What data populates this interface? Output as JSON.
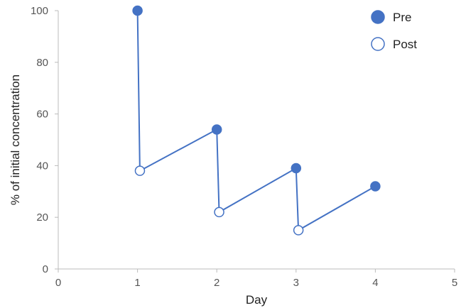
{
  "chart_data": {
    "type": "line",
    "xlabel": "Day",
    "ylabel": "% of initial concentration",
    "xlim": [
      0,
      5
    ],
    "ylim": [
      0,
      100
    ],
    "xticks": [
      "0",
      "1",
      "2",
      "3",
      "4",
      "5"
    ],
    "yticks": [
      "0",
      "20",
      "40",
      "60",
      "80",
      "100"
    ],
    "grid": false,
    "legend_position": "top-right",
    "line_color": "#4472c4",
    "trace": [
      {
        "x": 1.0,
        "y": 100
      },
      {
        "x": 1.03,
        "y": 38
      },
      {
        "x": 2.0,
        "y": 54
      },
      {
        "x": 2.03,
        "y": 22
      },
      {
        "x": 3.0,
        "y": 39
      },
      {
        "x": 3.03,
        "y": 15
      },
      {
        "x": 4.0,
        "y": 32
      }
    ],
    "series": [
      {
        "name": "Pre",
        "marker": "filled",
        "x": [
          1,
          2,
          3,
          4
        ],
        "y": [
          100,
          54,
          39,
          32
        ]
      },
      {
        "name": "Post",
        "marker": "open",
        "x": [
          1.03,
          2.03,
          3.03
        ],
        "y": [
          38,
          22,
          15
        ]
      }
    ]
  }
}
